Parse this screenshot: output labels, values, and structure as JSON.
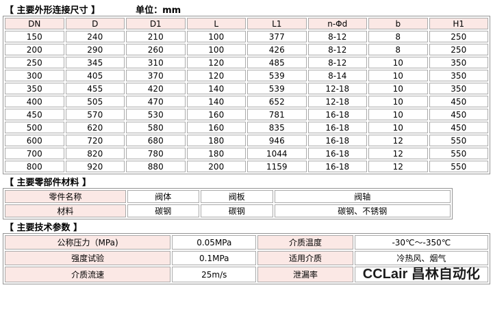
{
  "colors": {
    "header_bg": "#fbe8e5",
    "border_color": "#a9a9a9",
    "outer_border": "#939393",
    "watermark_color": "#1c1c1c"
  },
  "sections": {
    "dimensions": {
      "title": "【 主要外形连接尺寸 】",
      "unit_label": "单位：mm"
    },
    "materials": {
      "title": "【 主要零部件材料 】"
    },
    "parameters": {
      "title": "【 主要技术参数 】"
    }
  },
  "dimensions_table": {
    "headers": [
      "DN",
      "D",
      "D1",
      "L",
      "L1",
      "n-Φd",
      "b",
      "H1"
    ],
    "rows": [
      [
        "150",
        "240",
        "210",
        "100",
        "377",
        "8-12",
        "8",
        "250"
      ],
      [
        "200",
        "290",
        "260",
        "100",
        "426",
        "8-12",
        "8",
        "250"
      ],
      [
        "250",
        "345",
        "310",
        "120",
        "485",
        "8-12",
        "10",
        "350"
      ],
      [
        "300",
        "405",
        "370",
        "120",
        "539",
        "8-14",
        "10",
        "350"
      ],
      [
        "350",
        "455",
        "420",
        "140",
        "539",
        "12-18",
        "10",
        "350"
      ],
      [
        "400",
        "505",
        "470",
        "140",
        "652",
        "12-18",
        "10",
        "450"
      ],
      [
        "450",
        "570",
        "530",
        "160",
        "781",
        "16-18",
        "10",
        "450"
      ],
      [
        "500",
        "620",
        "580",
        "160",
        "835",
        "16-18",
        "10",
        "450"
      ],
      [
        "600",
        "720",
        "680",
        "180",
        "946",
        "16-18",
        "12",
        "550"
      ],
      [
        "700",
        "820",
        "780",
        "180",
        "1044",
        "16-18",
        "12",
        "550"
      ],
      [
        "800",
        "920",
        "880",
        "200",
        "1159",
        "16-18",
        "12",
        "550"
      ]
    ]
  },
  "materials_table": {
    "rows": [
      [
        "零件名称",
        "阀体",
        "阀板",
        "阀轴"
      ],
      [
        "材料",
        "碳钢",
        "碳钢",
        "碳钢、不锈钢"
      ]
    ]
  },
  "params_table": {
    "rows": [
      [
        "公称压力（MPa)",
        "0.05MPa",
        "介质温度",
        "-30℃～-350℃"
      ],
      [
        "强度试验",
        "0.1MPa",
        "适用介质",
        "冷热风、烟气"
      ],
      [
        "介质流速",
        "25m/s",
        "泄漏率",
        ""
      ]
    ]
  },
  "watermark": "CCLair 昌林自动化"
}
